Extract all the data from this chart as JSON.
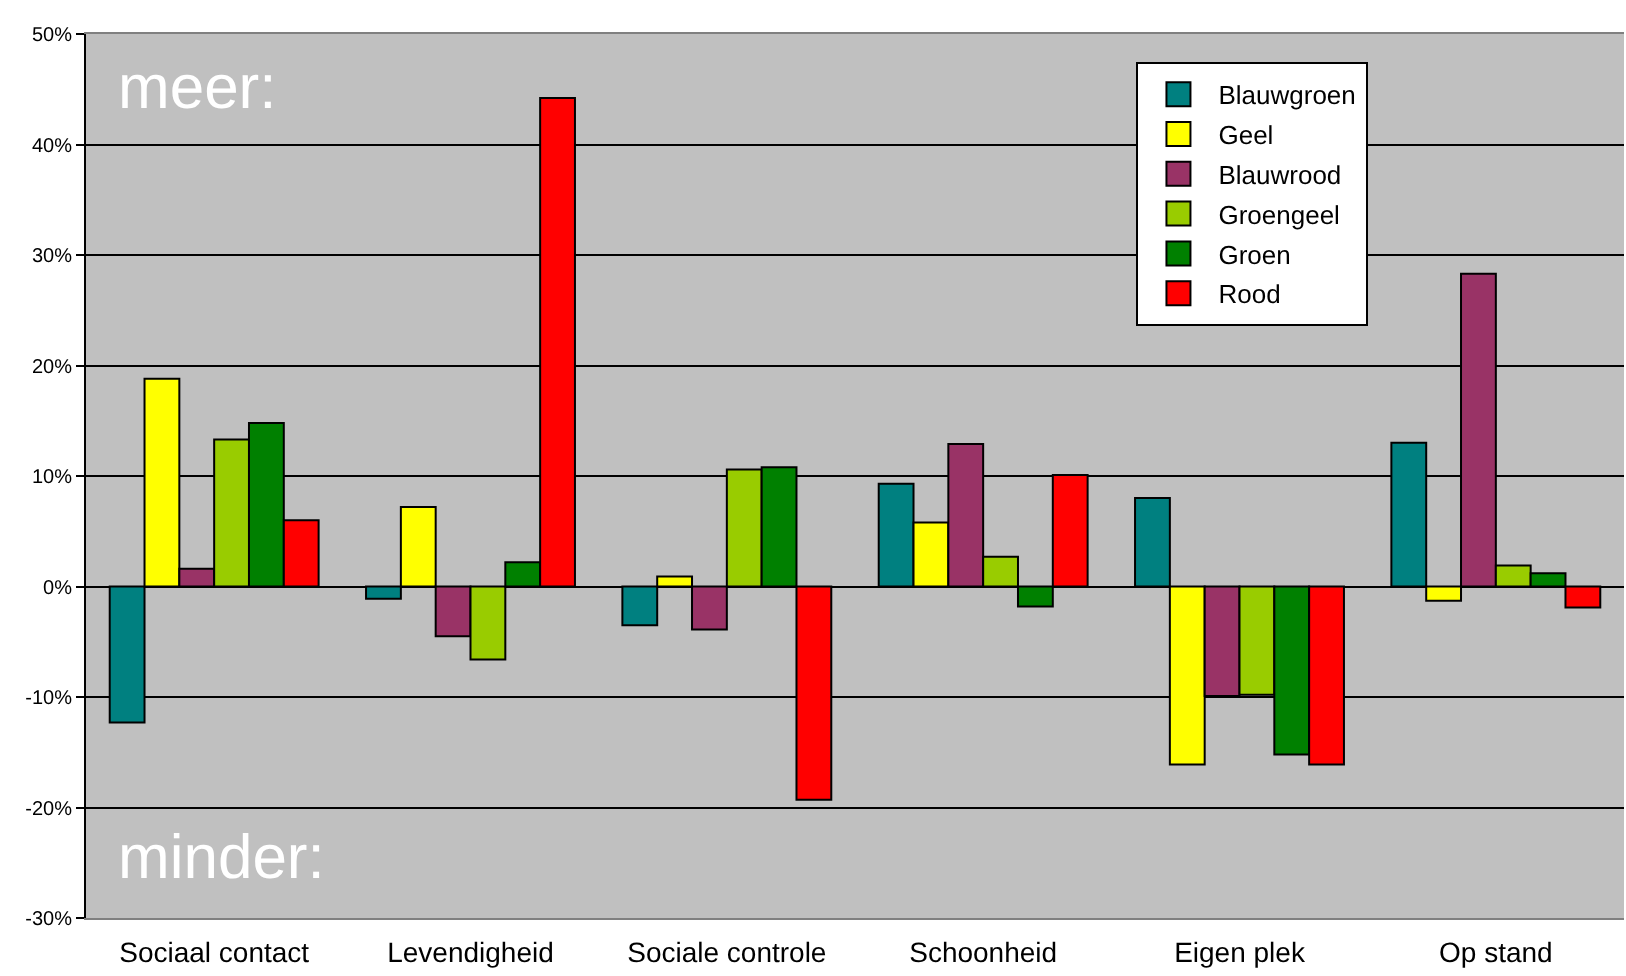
{
  "chart_data": {
    "type": "bar",
    "categories": [
      "Sociaal contact",
      "Levendigheid",
      "Sociale controle",
      "Schoonheid",
      "Eigen plek",
      "Op stand"
    ],
    "series": [
      {
        "name": "Blauwgroen",
        "color": "#008080",
        "values": [
          -12.3,
          -1.1,
          -3.5,
          9.3,
          8.0,
          13.0
        ]
      },
      {
        "name": "Geel",
        "color": "#ffff00",
        "values": [
          18.8,
          7.2,
          0.9,
          5.8,
          -16.1,
          -1.3
        ]
      },
      {
        "name": "Blauwrood",
        "color": "#993366",
        "values": [
          1.6,
          -4.5,
          -3.9,
          12.9,
          -9.9,
          28.3
        ]
      },
      {
        "name": "Groengeel",
        "color": "#99cc00",
        "values": [
          13.3,
          -6.6,
          10.6,
          2.7,
          -9.8,
          1.9
        ]
      },
      {
        "name": "Groen",
        "color": "#008000",
        "values": [
          14.8,
          2.2,
          10.8,
          -1.8,
          -15.2,
          1.2
        ]
      },
      {
        "name": "Rood",
        "color": "#ff0000",
        "values": [
          6.0,
          44.2,
          -19.3,
          10.1,
          -16.1,
          -1.9
        ]
      }
    ],
    "ylim": [
      -30,
      50
    ],
    "yticks": [
      {
        "value": -30,
        "label": "-30%"
      },
      {
        "value": -20,
        "label": "-20%"
      },
      {
        "value": -10,
        "label": "-10%"
      },
      {
        "value": 0,
        "label": "0%"
      },
      {
        "value": 10,
        "label": "10%"
      },
      {
        "value": 20,
        "label": "20%"
      },
      {
        "value": 30,
        "label": "30%"
      },
      {
        "value": 40,
        "label": "40%"
      },
      {
        "value": 50,
        "label": "50%"
      }
    ],
    "grid": "y",
    "legend": "top right",
    "annotations": [
      "meer:",
      "minder:"
    ]
  }
}
